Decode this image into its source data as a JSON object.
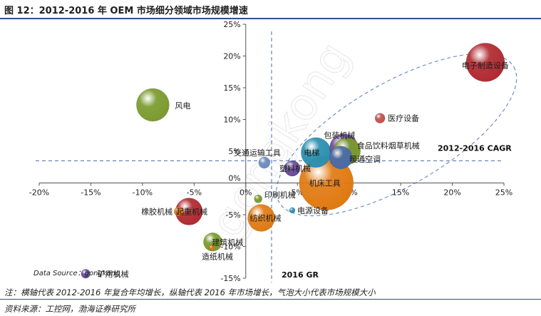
{
  "figure_title": "图 12：2012-2016 年 OEM 市场细分领域市场规模增速",
  "note": "注：横轴代表 2012-2016 年复合年均增长，纵轴代表 2016 年市场增长，气泡大小代表市场规模大小",
  "source": "资料来源：工控网，渤海证券研究所",
  "chart_data": {
    "type": "scatter",
    "title": "",
    "xlabel": "2012-2016 CAGR",
    "ylabel": "2016 GR",
    "xlim": [
      -20,
      25
    ],
    "ylim": [
      -15,
      25
    ],
    "x_ticks": [
      "-20%",
      "-15%",
      "-10%",
      "-5%",
      "0%",
      "5%",
      "10%",
      "15%",
      "20%",
      "25%"
    ],
    "y_ticks": [
      "-15%",
      "-10%",
      "-5%",
      "0%",
      "5%",
      "10%",
      "15%",
      "20%",
      "25%"
    ],
    "x_tick_values": [
      -20,
      -15,
      -10,
      -5,
      0,
      5,
      10,
      15,
      20,
      25
    ],
    "y_tick_values": [
      -15,
      -10,
      -5,
      0,
      5,
      10,
      15,
      20,
      25
    ],
    "reference_lines": {
      "vertical_x": 2.5,
      "horizontal_y": 3.5
    },
    "data_source_label": "Data Source：gongkong",
    "watermark": "gongkong",
    "points": [
      {
        "label": "电子制造设备",
        "x": 23.2,
        "y": 19.0,
        "size": 1.35,
        "color": "#b02a30"
      },
      {
        "label": "风电",
        "x": -9.0,
        "y": 12.3,
        "size": 1.15,
        "color": "#7a9a2e"
      },
      {
        "label": "医疗设备",
        "x": 13.0,
        "y": 10.2,
        "size": 0.35,
        "color": "#c0504d"
      },
      {
        "label": "包装机械",
        "x": 9.5,
        "y": 5.5,
        "size": 1.0,
        "color": "#6a4a9a"
      },
      {
        "label": "食品饮料烟草机械",
        "x": 9.8,
        "y": 5.0,
        "size": 0.95,
        "color": "#7a9a2e"
      },
      {
        "label": "电梯",
        "x": 6.8,
        "y": 4.8,
        "size": 1.05,
        "color": "#2a8fb0"
      },
      {
        "label": "暖通空调",
        "x": 9.2,
        "y": 4.0,
        "size": 0.8,
        "color": "#4a6aa8"
      },
      {
        "label": "交通运输工具",
        "x": 1.8,
        "y": 3.2,
        "size": 0.4,
        "color": "#6a8ac0"
      },
      {
        "label": "塑料机械",
        "x": 4.5,
        "y": 2.3,
        "size": 0.55,
        "color": "#6a4a9a"
      },
      {
        "label": "机床工具",
        "x": 7.8,
        "y": 0.0,
        "size": 1.9,
        "color": "#e07a12"
      },
      {
        "label": "印刷机械",
        "x": 1.2,
        "y": -2.5,
        "size": 0.28,
        "color": "#7a9a2e"
      },
      {
        "label": "纺织机械",
        "x": 1.5,
        "y": -5.5,
        "size": 0.95,
        "color": "#e07a12"
      },
      {
        "label": "电源设备",
        "x": 4.5,
        "y": -4.3,
        "size": 0.2,
        "color": "#2a8fb0"
      },
      {
        "label": "起重机械",
        "x": -5.5,
        "y": -4.5,
        "size": 0.95,
        "color": "#b02a30"
      },
      {
        "label": "橡胶机械",
        "x": -6.5,
        "y": -4.5,
        "size": 0.32,
        "color": "#e07a12"
      },
      {
        "label": "建筑机械",
        "x": -3.2,
        "y": -9.3,
        "size": 0.65,
        "color": "#7a9a2e"
      },
      {
        "label": "造纸机械",
        "x": -3.3,
        "y": -10.2,
        "size": 0.18,
        "color": "#e07a12"
      },
      {
        "label": "矿用机械",
        "x": -15.5,
        "y": -14.3,
        "size": 0.32,
        "color": "#6a4a9a"
      }
    ]
  }
}
